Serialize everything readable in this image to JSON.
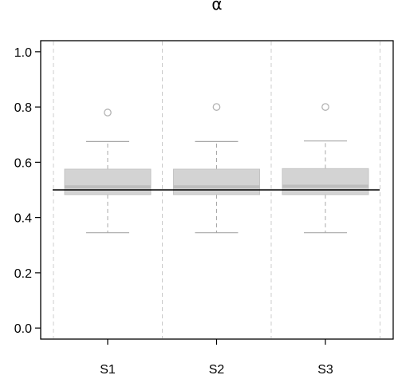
{
  "chart_data": {
    "type": "box",
    "title": "α",
    "xlabel": "",
    "ylabel": "",
    "ylim": [
      -0.04,
      1.04
    ],
    "yticks": [
      0.0,
      0.2,
      0.4,
      0.6,
      0.8,
      1.0
    ],
    "ytick_labels": [
      "0.0",
      "0.2",
      "0.4",
      "0.6",
      "0.8",
      "1.0"
    ],
    "categories": [
      "S1",
      "S2",
      "S3"
    ],
    "grid": "vertical dashed separators",
    "reference_line": 0.5,
    "boxes": [
      {
        "category": "S1",
        "whisker_low": 0.345,
        "q1": 0.483,
        "median": 0.511,
        "q3": 0.575,
        "whisker_high": 0.675,
        "outliers": [
          0.78
        ]
      },
      {
        "category": "S2",
        "whisker_low": 0.345,
        "q1": 0.483,
        "median": 0.511,
        "q3": 0.575,
        "whisker_high": 0.675,
        "outliers": [
          0.8
        ]
      },
      {
        "category": "S3",
        "whisker_low": 0.345,
        "q1": 0.483,
        "median": 0.513,
        "q3": 0.577,
        "whisker_high": 0.677,
        "outliers": [
          0.8
        ]
      }
    ],
    "colors": {
      "box_fill": "#d3d3d3",
      "box_stroke": "#c4c4c4",
      "median": "#bdbdbd",
      "whisker": "#a8a8a8",
      "outlier": "#b3b3b3",
      "grid": "#cccccc",
      "reference": "#000000",
      "axis": "#000000"
    }
  }
}
